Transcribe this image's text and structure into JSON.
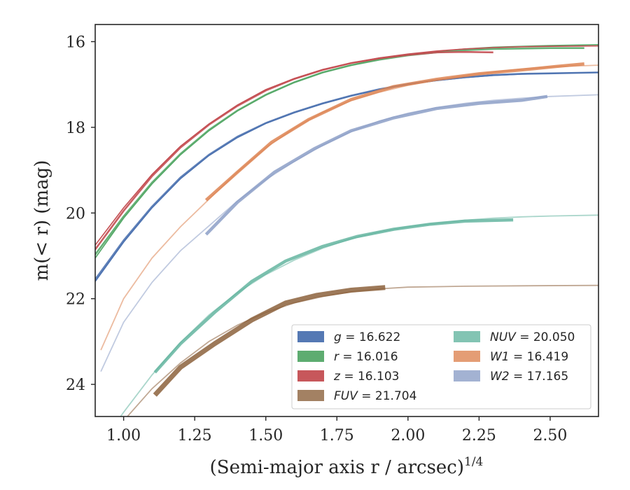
{
  "chart_data": {
    "type": "line",
    "title": "",
    "xlabel": "(Semi-major axis r / arcsec)",
    "xlabel_superscript": "1/4",
    "ylabel": "m(< r) (mag)",
    "xlim": [
      0.9,
      2.67
    ],
    "ylim": [
      24.75,
      15.6
    ],
    "y_inverted": true,
    "grid": false,
    "legend_position": "lower-right",
    "xticks": [
      "1.00",
      "1.25",
      "1.50",
      "1.75",
      "2.00",
      "2.25",
      "2.50"
    ],
    "yticks": [
      "16",
      "18",
      "20",
      "22",
      "24"
    ],
    "series": [
      {
        "name": "g = 16.622",
        "legend_label": "g = 16.622",
        "color": "#4c72b0",
        "model_x": [
          0.9,
          1.0,
          1.1,
          1.2,
          1.3,
          1.4,
          1.5,
          1.6,
          1.7,
          1.8,
          1.9,
          2.0,
          2.1,
          2.2,
          2.3,
          2.4,
          2.5,
          2.67
        ],
        "model_y": [
          21.6,
          20.68,
          19.88,
          19.2,
          18.66,
          18.24,
          17.91,
          17.66,
          17.45,
          17.27,
          17.12,
          17.0,
          16.91,
          16.84,
          16.79,
          16.76,
          16.74,
          16.72
        ],
        "data_x": [
          0.9,
          1.0,
          1.1,
          1.2,
          1.3,
          1.4,
          1.5,
          1.6,
          1.7,
          1.8,
          1.9,
          2.0,
          2.1,
          2.2,
          2.3,
          2.4,
          2.5,
          2.67
        ],
        "data_y": [
          21.55,
          20.64,
          19.85,
          19.17,
          18.64,
          18.22,
          17.9,
          17.65,
          17.44,
          17.26,
          17.11,
          16.99,
          16.9,
          16.83,
          16.78,
          16.75,
          16.74,
          16.72
        ]
      },
      {
        "name": "r = 16.016",
        "legend_label": "r = 16.016",
        "color": "#55a868",
        "model_x": [
          0.9,
          1.0,
          1.1,
          1.2,
          1.3,
          1.4,
          1.5,
          1.6,
          1.7,
          1.8,
          1.9,
          2.0,
          2.1,
          2.2,
          2.3,
          2.4,
          2.5,
          2.67
        ],
        "model_y": [
          21.05,
          20.12,
          19.32,
          18.64,
          18.08,
          17.62,
          17.25,
          16.95,
          16.72,
          16.55,
          16.41,
          16.31,
          16.23,
          16.17,
          16.13,
          16.11,
          16.09,
          16.07
        ],
        "data_x": [
          0.9,
          1.0,
          1.1,
          1.2,
          1.3,
          1.4,
          1.5,
          1.6,
          1.7,
          1.8,
          1.9,
          2.0,
          2.1,
          2.2,
          2.3,
          2.4,
          2.5,
          2.62
        ],
        "data_y": [
          20.97,
          20.08,
          19.29,
          18.62,
          18.06,
          17.61,
          17.24,
          16.95,
          16.72,
          16.55,
          16.42,
          16.32,
          16.25,
          16.2,
          16.17,
          16.16,
          16.15,
          16.15
        ]
      },
      {
        "name": "z = 16.103",
        "legend_label": "z = 16.103",
        "color": "#c44e52",
        "model_x": [
          0.9,
          1.0,
          1.1,
          1.2,
          1.3,
          1.4,
          1.5,
          1.6,
          1.7,
          1.8,
          1.9,
          2.0,
          2.1,
          2.2,
          2.3,
          2.4,
          2.5,
          2.67
        ],
        "model_y": [
          20.75,
          19.88,
          19.1,
          18.44,
          17.92,
          17.48,
          17.12,
          16.86,
          16.65,
          16.5,
          16.38,
          16.29,
          16.22,
          16.17,
          16.14,
          16.12,
          16.11,
          16.1
        ],
        "data_x": [
          0.9,
          1.0,
          1.1,
          1.2,
          1.3,
          1.4,
          1.5,
          1.6,
          1.7,
          1.8,
          1.9,
          2.0,
          2.1,
          2.2,
          2.3
        ],
        "data_y": [
          20.85,
          19.95,
          19.14,
          18.47,
          17.94,
          17.5,
          17.14,
          16.87,
          16.66,
          16.5,
          16.39,
          16.31,
          16.25,
          16.24,
          16.25
        ]
      },
      {
        "name": "FUV = 21.704",
        "legend_label": "FUV = 21.704",
        "color": "#8c613c",
        "model_x": [
          0.9,
          1.0,
          1.1,
          1.2,
          1.3,
          1.4,
          1.5,
          1.6,
          1.7,
          1.8,
          1.9,
          2.0,
          2.2,
          2.4,
          2.67
        ],
        "model_y": [
          25.9,
          24.85,
          24.1,
          23.5,
          23.0,
          22.62,
          22.32,
          22.1,
          21.95,
          21.84,
          21.77,
          21.73,
          21.71,
          21.7,
          21.69
        ],
        "data_x": [
          1.11,
          1.2,
          1.32,
          1.45,
          1.57,
          1.68,
          1.8,
          1.92
        ],
        "data_y": [
          24.25,
          23.6,
          23.05,
          22.5,
          22.1,
          21.92,
          21.8,
          21.74
        ]
      },
      {
        "name": "NUV = 20.050",
        "legend_label": "NUV = 20.050",
        "color": "#64b5a0",
        "model_x": [
          0.9,
          1.0,
          1.1,
          1.2,
          1.3,
          1.4,
          1.5,
          1.6,
          1.7,
          1.8,
          1.9,
          2.0,
          2.1,
          2.2,
          2.3,
          2.4,
          2.5,
          2.67
        ],
        "model_y": [
          25.6,
          24.65,
          23.78,
          23.02,
          22.38,
          21.86,
          21.44,
          21.1,
          20.82,
          20.6,
          20.44,
          20.32,
          20.24,
          20.17,
          20.12,
          20.09,
          20.07,
          20.05
        ],
        "data_x": [
          1.11,
          1.2,
          1.32,
          1.45,
          1.57,
          1.7,
          1.82,
          1.95,
          2.08,
          2.2,
          2.37
        ],
        "data_y": [
          23.72,
          23.05,
          22.32,
          21.6,
          21.12,
          20.78,
          20.55,
          20.38,
          20.26,
          20.19,
          20.16
        ]
      },
      {
        "name": "W1 = 16.419",
        "legend_label": "W1 = 16.419",
        "color": "#dd8452",
        "model_x": [
          0.92,
          1.0,
          1.1,
          1.2,
          1.3,
          1.4,
          1.5,
          1.6,
          1.7,
          1.8,
          1.9,
          2.0,
          2.1,
          2.2,
          2.3,
          2.4,
          2.5,
          2.67
        ],
        "model_y": [
          23.2,
          22.0,
          21.05,
          20.32,
          19.68,
          19.05,
          18.48,
          18.02,
          17.65,
          17.38,
          17.18,
          17.02,
          16.9,
          16.8,
          16.71,
          16.64,
          16.59,
          16.55
        ],
        "data_x": [
          1.29,
          1.4,
          1.52,
          1.65,
          1.8,
          1.95,
          2.1,
          2.25,
          2.4,
          2.52,
          2.62
        ],
        "data_y": [
          19.7,
          19.05,
          18.35,
          17.82,
          17.35,
          17.05,
          16.88,
          16.75,
          16.66,
          16.58,
          16.52
        ]
      },
      {
        "name": "W2 = 17.165",
        "legend_label": "W2 = 17.165",
        "color": "#8c9fc7",
        "model_x": [
          0.92,
          1.0,
          1.1,
          1.2,
          1.3,
          1.4,
          1.5,
          1.6,
          1.7,
          1.8,
          1.9,
          2.0,
          2.1,
          2.2,
          2.3,
          2.4,
          2.5,
          2.67
        ],
        "model_y": [
          23.7,
          22.55,
          21.62,
          20.88,
          20.3,
          19.72,
          19.22,
          18.8,
          18.42,
          18.1,
          17.85,
          17.67,
          17.54,
          17.44,
          17.37,
          17.32,
          17.28,
          17.24
        ],
        "data_x": [
          1.29,
          1.4,
          1.53,
          1.67,
          1.8,
          1.95,
          2.1,
          2.25,
          2.4,
          2.49
        ],
        "data_y": [
          20.5,
          19.75,
          19.05,
          18.5,
          18.08,
          17.78,
          17.56,
          17.44,
          17.37,
          17.28
        ]
      }
    ]
  }
}
